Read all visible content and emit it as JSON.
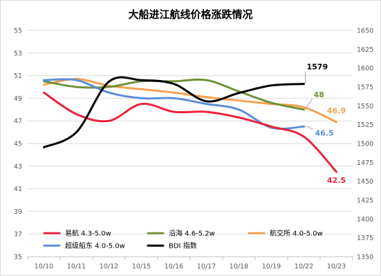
{
  "chart_data": {
    "type": "line",
    "title": "大船进江航线价格涨跌情况",
    "categories": [
      "10/10",
      "10/11",
      "10/12",
      "10/15",
      "10/16",
      "10/17",
      "10/18",
      "10/19",
      "10/22",
      "10/23"
    ],
    "y_left": {
      "min": 35,
      "max": 55,
      "ticks": [
        35,
        37,
        39,
        41,
        43,
        45,
        47,
        49,
        51,
        53,
        55
      ]
    },
    "y_right": {
      "min": 1350,
      "max": 1650,
      "ticks": [
        1350,
        1375,
        1400,
        1425,
        1450,
        1475,
        1500,
        1525,
        1550,
        1575,
        1600,
        1625,
        1650
      ]
    },
    "grid": true,
    "legend_position": "bottom-left-inside",
    "series": [
      {
        "name": "易航 4.3-5.0w",
        "color": "#e8233c",
        "axis": "left",
        "values": [
          49.5,
          47.6,
          47.0,
          48.5,
          47.8,
          47.8,
          47.3,
          46.5,
          45.6,
          42.5
        ],
        "end_label": "42.5"
      },
      {
        "name": "沿海 4.6-5.2w",
        "color": "#70913a",
        "axis": "left",
        "values": [
          50.5,
          50.0,
          50.0,
          50.5,
          50.5,
          50.6,
          49.6,
          48.6,
          48.0,
          null
        ],
        "end_label": "48"
      },
      {
        "name": "航交所 4.0-5.0w",
        "color": "#f6a14f",
        "axis": "left",
        "values": [
          50.2,
          50.7,
          50.1,
          49.8,
          49.5,
          49.1,
          48.8,
          48.5,
          48.2,
          46.9
        ],
        "end_label": "46.9"
      },
      {
        "name": "超级船东 4.0-5.0w",
        "color": "#5b8fd6",
        "axis": "left",
        "values": [
          50.6,
          50.6,
          49.5,
          49.0,
          49.0,
          48.5,
          48.0,
          46.4,
          46.5,
          null
        ],
        "end_label": "46.5"
      },
      {
        "name": "BDI 指数",
        "color": "#000000",
        "axis": "right",
        "values": [
          1495,
          1515,
          1582,
          1584,
          1579,
          1556,
          1567,
          1577,
          1579,
          null
        ],
        "end_label": "1579"
      }
    ]
  }
}
